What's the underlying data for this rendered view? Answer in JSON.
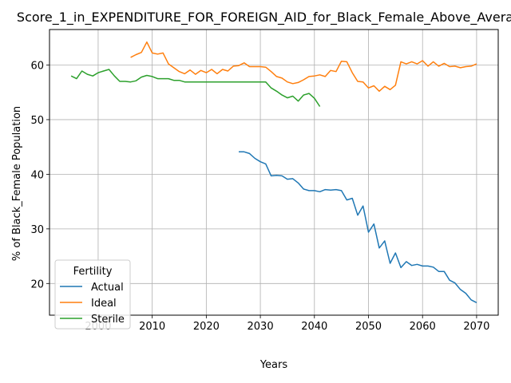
{
  "chart_data": {
    "type": "line",
    "title": "Score_1_in_EXPENDITURE_FOR_FOREIGN_AID_for_Black_Female_Above_Average",
    "xlabel": "Years",
    "ylabel": "% of Black_Female Population",
    "xlim": [
      1991,
      2074
    ],
    "ylim": [
      14.2,
      66.5
    ],
    "xticks": [
      2000,
      2010,
      2020,
      2030,
      2040,
      2050,
      2060,
      2070
    ],
    "yticks": [
      20,
      30,
      40,
      50,
      60
    ],
    "grid": true,
    "legend": {
      "title": "Fertility",
      "placement": "lower-left"
    },
    "series": [
      {
        "name": "Actual",
        "color": "#1f77b4",
        "x": [
          2026,
          2027,
          2028,
          2029,
          2030,
          2031,
          2032,
          2033,
          2034,
          2035,
          2036,
          2037,
          2038,
          2039,
          2040,
          2041,
          2042,
          2043,
          2044,
          2045,
          2046,
          2047,
          2048,
          2049,
          2050,
          2051,
          2052,
          2053,
          2054,
          2055,
          2056,
          2057,
          2058,
          2059,
          2060,
          2061,
          2062,
          2063,
          2064,
          2065,
          2066,
          2067,
          2068,
          2069,
          2070
        ],
        "y": [
          44.1,
          44.1,
          43.8,
          42.9,
          42.3,
          41.9,
          39.7,
          39.8,
          39.7,
          39.1,
          39.2,
          38.4,
          37.3,
          37.0,
          37.0,
          36.8,
          37.2,
          37.1,
          37.2,
          37.0,
          35.3,
          35.6,
          32.5,
          34.2,
          29.4,
          30.9,
          26.5,
          27.8,
          23.7,
          25.6,
          22.9,
          24.0,
          23.3,
          23.5,
          23.2,
          23.2,
          23.0,
          22.2,
          22.2,
          20.6,
          20.1,
          18.9,
          18.2,
          17.0,
          16.5
        ]
      },
      {
        "name": "Ideal",
        "color": "#ff7f0e",
        "x": [
          2006,
          2007,
          2008,
          2009,
          2010,
          2011,
          2012,
          2013,
          2014,
          2015,
          2016,
          2017,
          2018,
          2019,
          2020,
          2021,
          2022,
          2023,
          2024,
          2025,
          2026,
          2027,
          2028,
          2029,
          2030,
          2031,
          2032,
          2033,
          2034,
          2035,
          2036,
          2037,
          2038,
          2039,
          2040,
          2041,
          2042,
          2043,
          2044,
          2045,
          2046,
          2047,
          2048,
          2049,
          2050,
          2051,
          2052,
          2053,
          2054,
          2055,
          2056,
          2057,
          2058,
          2059,
          2060,
          2061,
          2062,
          2063,
          2064,
          2065,
          2066,
          2067,
          2068,
          2069,
          2070
        ],
        "y": [
          61.4,
          61.9,
          62.3,
          64.2,
          62.2,
          62.0,
          62.2,
          60.2,
          59.5,
          58.8,
          58.4,
          59.1,
          58.3,
          59.0,
          58.6,
          59.2,
          58.4,
          59.2,
          58.9,
          59.8,
          59.9,
          60.4,
          59.7,
          59.7,
          59.7,
          59.6,
          58.8,
          57.9,
          57.6,
          56.9,
          56.6,
          56.8,
          57.3,
          57.9,
          58.0,
          58.2,
          57.9,
          59.0,
          58.8,
          60.7,
          60.6,
          58.6,
          57.0,
          56.9,
          55.8,
          56.2,
          55.2,
          56.1,
          55.5,
          56.3,
          60.6,
          60.2,
          60.6,
          60.2,
          60.8,
          59.8,
          60.6,
          59.8,
          60.3,
          59.7,
          59.8,
          59.5,
          59.7,
          59.8,
          60.2
        ]
      },
      {
        "name": "Sterile",
        "color": "#2ca02c",
        "x": [
          1995,
          1996,
          1997,
          1998,
          1999,
          2000,
          2001,
          2002,
          2003,
          2004,
          2005,
          2006,
          2007,
          2008,
          2009,
          2010,
          2011,
          2012,
          2013,
          2014,
          2015,
          2016,
          2017,
          2018,
          2019,
          2020,
          2021,
          2022,
          2023,
          2024,
          2025,
          2026,
          2027,
          2028,
          2029,
          2030,
          2031,
          2032,
          2033,
          2034,
          2035,
          2036,
          2037,
          2038,
          2039,
          2040,
          2041
        ],
        "y": [
          58.0,
          57.5,
          58.9,
          58.3,
          58.0,
          58.6,
          58.9,
          59.2,
          58.0,
          57.0,
          57.0,
          56.9,
          57.1,
          57.8,
          58.1,
          57.9,
          57.5,
          57.5,
          57.5,
          57.2,
          57.2,
          56.9,
          56.9,
          56.9,
          56.9,
          56.9,
          56.9,
          56.9,
          56.9,
          56.9,
          56.9,
          56.9,
          56.9,
          56.9,
          56.9,
          56.9,
          56.9,
          55.8,
          55.2,
          54.5,
          54.0,
          54.3,
          53.4,
          54.5,
          54.8,
          53.9,
          52.4
        ]
      }
    ]
  }
}
